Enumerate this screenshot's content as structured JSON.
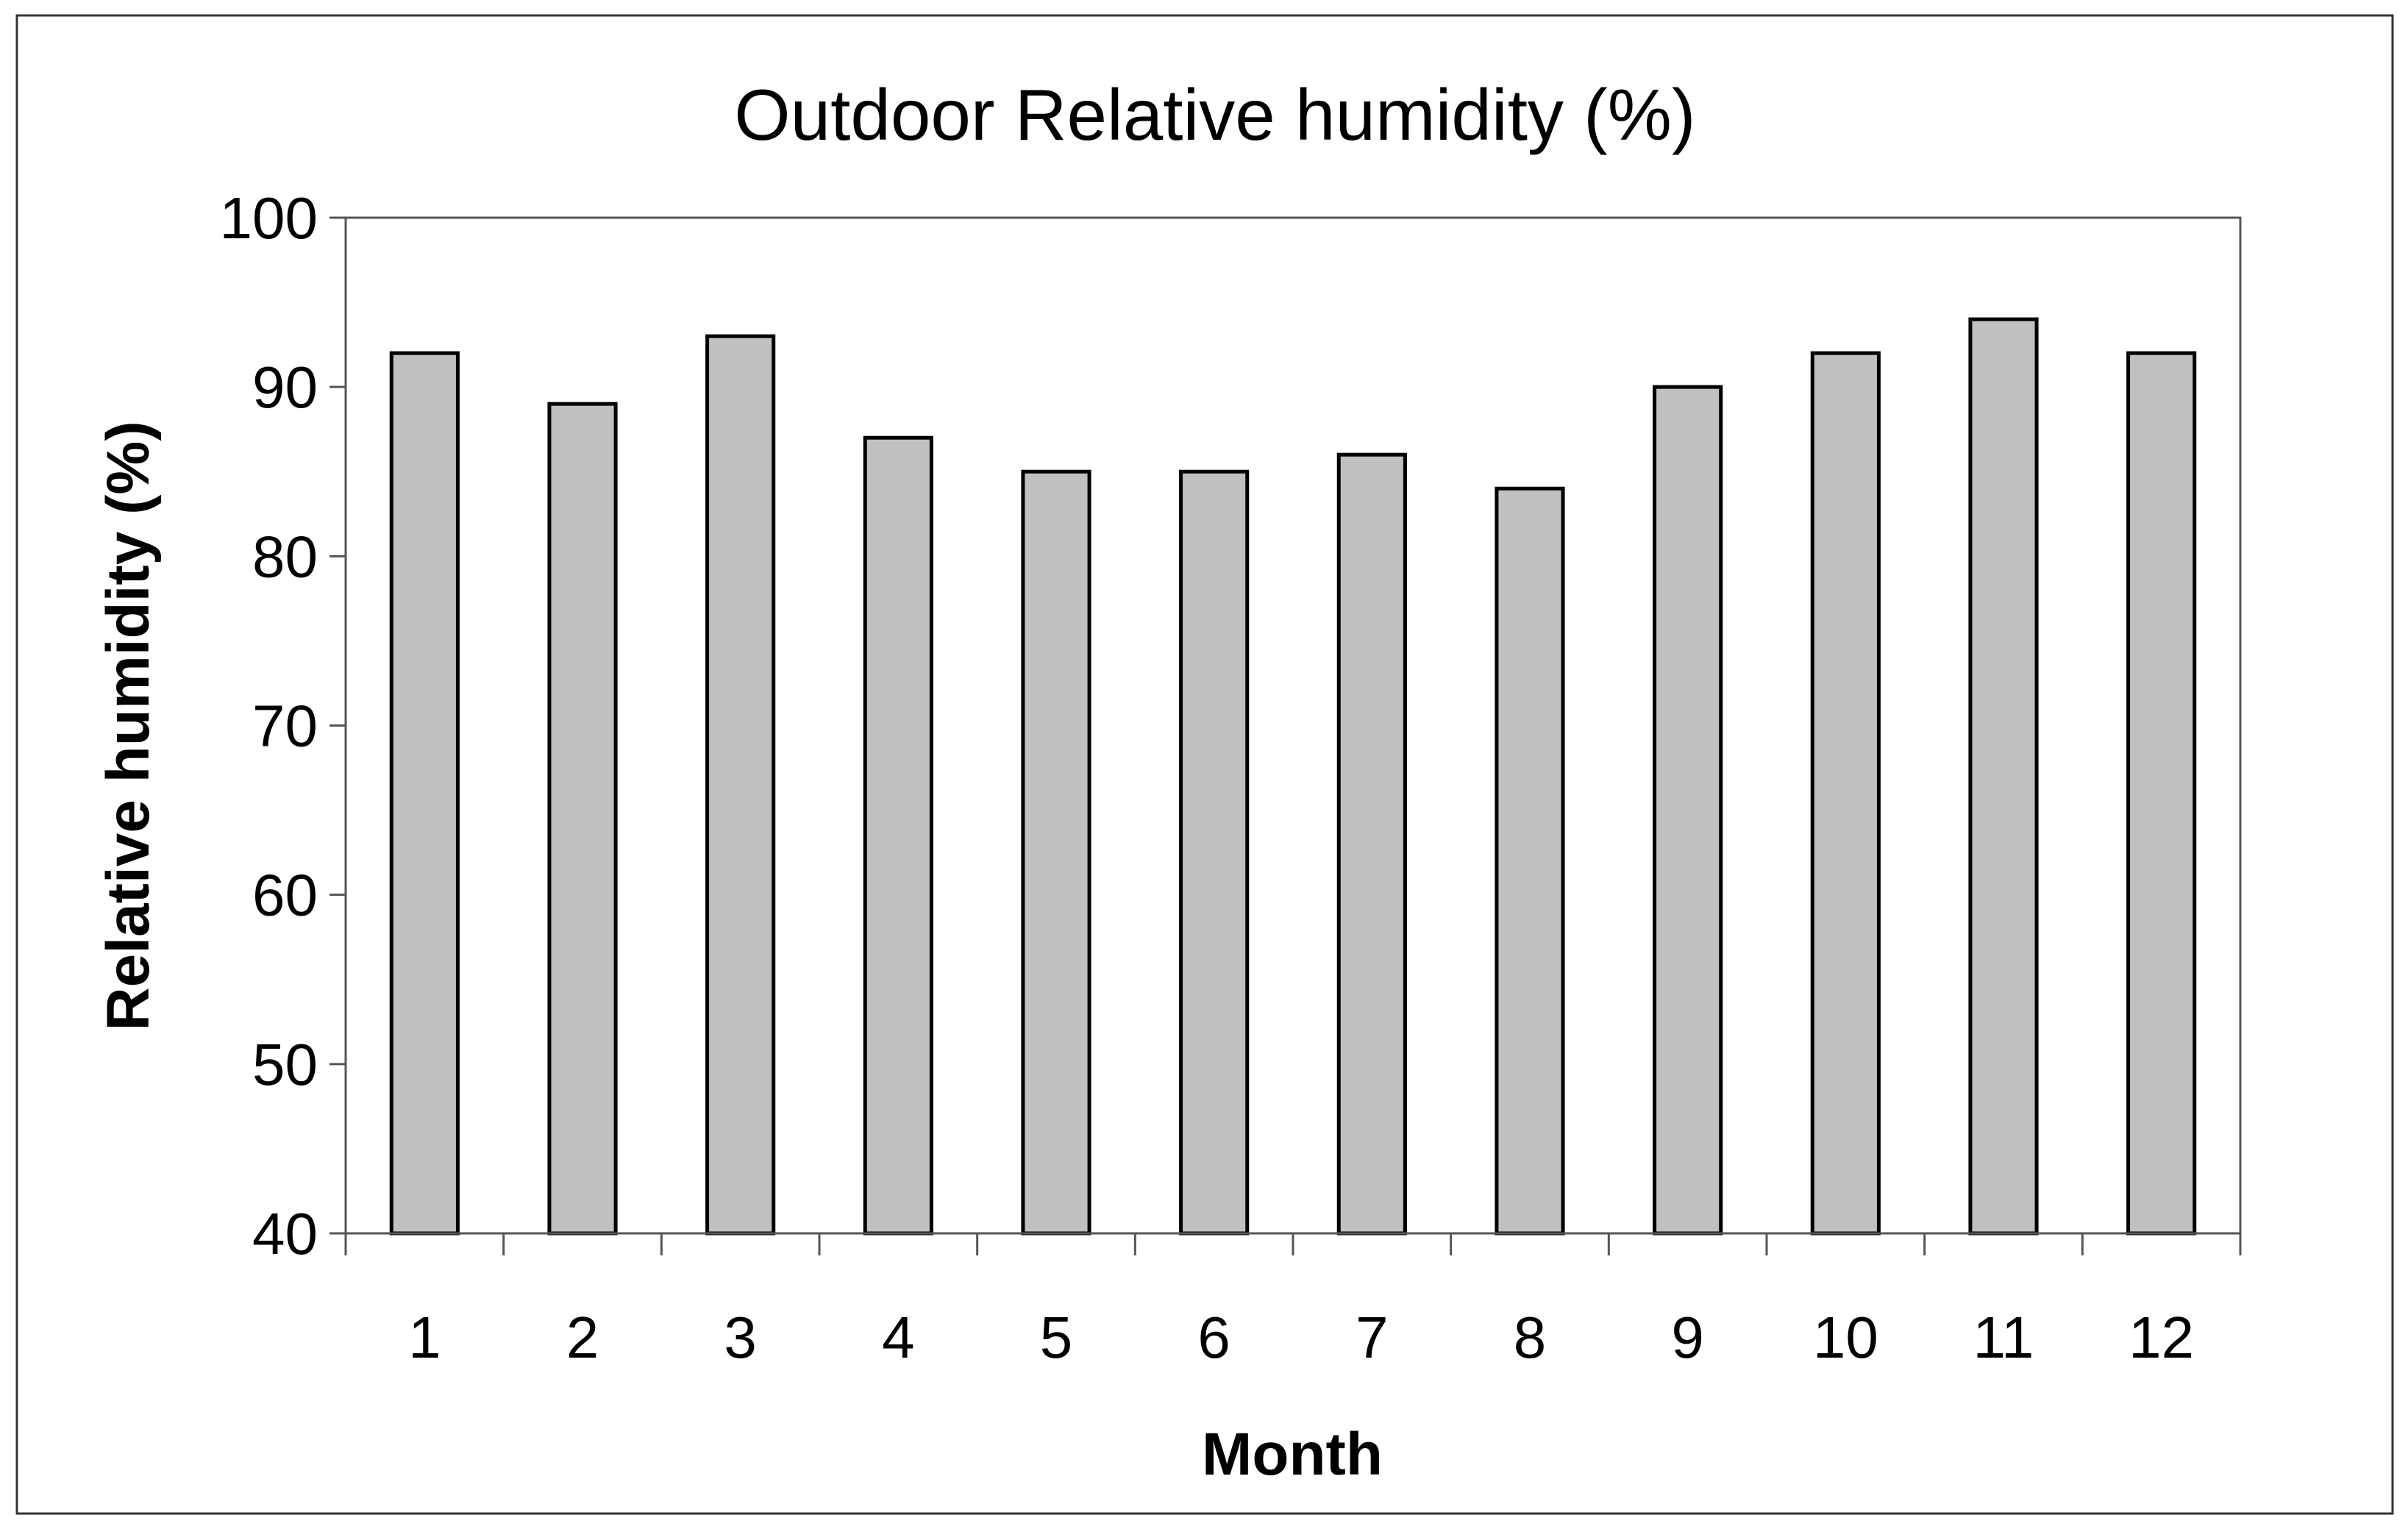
{
  "chart_data": {
    "type": "bar",
    "title": "Outdoor Relative humidity (%)",
    "xlabel": "Month",
    "ylabel": "Relative humidity (%)",
    "categories": [
      "1",
      "2",
      "3",
      "4",
      "5",
      "6",
      "7",
      "8",
      "9",
      "10",
      "11",
      "12"
    ],
    "values": [
      92,
      89,
      93,
      87,
      85,
      85,
      86,
      84,
      90,
      92,
      94,
      92
    ],
    "ylim": [
      40,
      100
    ],
    "yticks": [
      "40",
      "50",
      "60",
      "70",
      "80",
      "90",
      "100"
    ],
    "grid": false,
    "legend": "none",
    "colors": {
      "bar_fill": "#c0c0c0",
      "bar_stroke": "#000000",
      "plot_border": "#555555",
      "axis": "#555555",
      "outer_border": "#333333"
    }
  }
}
